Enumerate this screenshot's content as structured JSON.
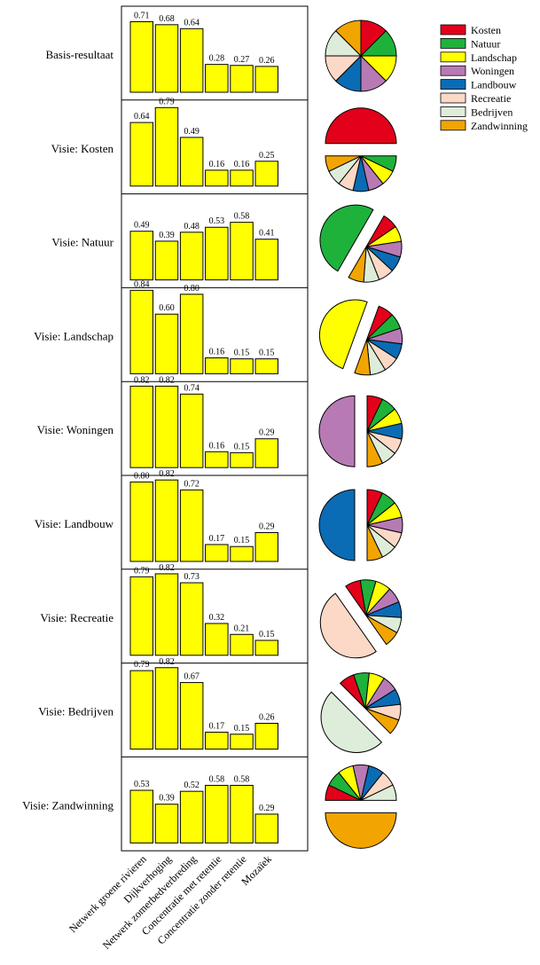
{
  "chart_data": {
    "type": "bar",
    "categories": [
      "Netwerk groene rivieren",
      "Dijkverhoging",
      "Netwerk zomerbedverbreding",
      "Concentratie met retentie",
      "Concentratie zonder retentie",
      "Mozaïek"
    ],
    "ylim": [
      0,
      1
    ],
    "bar_color": "#ffff00",
    "rows": [
      {
        "label": "Basis-resultaat",
        "values": [
          0.71,
          0.68,
          0.64,
          0.28,
          0.27,
          0.26
        ],
        "values_text": [
          "0.71",
          "0.68",
          "0.64",
          "0.28",
          "0.27",
          "0.26"
        ],
        "exploded": ""
      },
      {
        "label": "Visie: Kosten",
        "values": [
          0.64,
          0.79,
          0.49,
          0.16,
          0.16,
          0.25
        ],
        "values_text": [
          "0.64",
          "0.79",
          "0.49",
          "0.16",
          "0.16",
          "0.25"
        ],
        "exploded": "Kosten"
      },
      {
        "label": "Visie: Natuur",
        "values": [
          0.49,
          0.39,
          0.48,
          0.53,
          0.58,
          0.41
        ],
        "values_text": [
          "0.49",
          "0.39",
          "0.48",
          "0.53",
          "0.58",
          "0.41"
        ],
        "exploded": "Natuur"
      },
      {
        "label": "Visie: Landschap",
        "values": [
          0.84,
          0.6,
          0.8,
          0.16,
          0.15,
          0.15
        ],
        "values_text": [
          "0.84",
          "0.60",
          "0.80",
          "0.16",
          "0.15",
          "0.15"
        ],
        "exploded": "Landschap"
      },
      {
        "label": "Visie: Woningen",
        "values": [
          0.82,
          0.82,
          0.74,
          0.16,
          0.15,
          0.29
        ],
        "values_text": [
          "0.82",
          "0.82",
          "0.74",
          "0.16",
          "0.15",
          "0.29"
        ],
        "exploded": "Woningen"
      },
      {
        "label": "Visie: Landbouw",
        "values": [
          0.8,
          0.82,
          0.72,
          0.17,
          0.15,
          0.29
        ],
        "values_text": [
          "0.80",
          "0.82",
          "0.72",
          "0.17",
          "0.15",
          "0.29"
        ],
        "exploded": "Landbouw"
      },
      {
        "label": "Visie: Recreatie",
        "values": [
          0.79,
          0.82,
          0.73,
          0.32,
          0.21,
          0.15
        ],
        "values_text": [
          "0.79",
          "0.82",
          "0.73",
          "0.32",
          "0.21",
          "0.15"
        ],
        "exploded": "Recreatie"
      },
      {
        "label": "Visie: Bedrijven",
        "values": [
          0.79,
          0.82,
          0.67,
          0.17,
          0.15,
          0.26
        ],
        "values_text": [
          "0.79",
          "0.82",
          "0.67",
          "0.17",
          "0.15",
          "0.26"
        ],
        "exploded": "Bedrijven"
      },
      {
        "label": "Visie: Zandwinning",
        "values": [
          0.53,
          0.39,
          0.52,
          0.58,
          0.58,
          0.29
        ],
        "values_text": [
          "0.53",
          "0.39",
          "0.52",
          "0.58",
          "0.58",
          "0.29"
        ],
        "exploded": "Zandwinning"
      }
    ],
    "pie_weights": {
      "base_share": 0.125,
      "vision_share": 0.5
    },
    "legend": [
      {
        "name": "Kosten",
        "color": "#e2001a"
      },
      {
        "name": "Natuur",
        "color": "#1eb23b"
      },
      {
        "name": "Landschap",
        "color": "#ffff00"
      },
      {
        "name": "Woningen",
        "color": "#b87ab5"
      },
      {
        "name": "Landbouw",
        "color": "#0a6cb4"
      },
      {
        "name": "Recreatie",
        "color": "#fcd9c6"
      },
      {
        "name": "Bedrijven",
        "color": "#deedd9"
      },
      {
        "name": "Zandwinning",
        "color": "#f2a500"
      }
    ],
    "legend_placement": "top-right",
    "grid": false
  }
}
